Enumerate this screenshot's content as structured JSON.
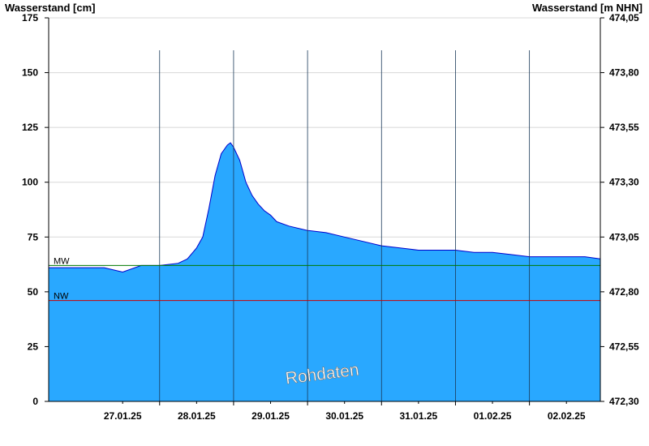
{
  "header": {
    "left_axis_title": "Wasserstand [cm]",
    "right_axis_title": "Wasserstand [m NHN]"
  },
  "watermark": "Rohdaten",
  "colors": {
    "area_fill": "#29a8ff",
    "area_line": "#0000cc",
    "mw_line": "#007a00",
    "nw_line": "#cc0000",
    "grid": "#d8d8d8",
    "day_separator": "#1a3a5a"
  },
  "chart_data": {
    "type": "area",
    "ylabel": "Wasserstand [cm]",
    "y2label": "Wasserstand [m NHN]",
    "ylim": [
      0,
      175
    ],
    "yticks": [
      0,
      25,
      50,
      75,
      100,
      125,
      150,
      175
    ],
    "y2lim": [
      472.3,
      474.05
    ],
    "y2ticks": [
      "472,30",
      "472,55",
      "472,80",
      "473,05",
      "473,30",
      "473,55",
      "473,80",
      "474,05"
    ],
    "xlim": [
      "26.01.25 12:00",
      "02.02.25 23:00"
    ],
    "xtick_labels": [
      "27.01.25",
      "28.01.25",
      "29.01.25",
      "30.01.25",
      "31.01.25",
      "01.02.25",
      "02.02.25"
    ],
    "day_boundaries": [
      "27.01.25 24:00",
      "28.01.25 24:00",
      "29.01.25 24:00",
      "30.01.25 24:00",
      "31.01.25 24:00",
      "01.02.25 24:00",
      "02.02.25 24:00"
    ],
    "grid": true,
    "reference_lines": [
      {
        "label": "MW",
        "value": 62
      },
      {
        "label": "NW",
        "value": 46
      }
    ],
    "series": [
      {
        "points": [
          [
            "26.01.25 12:00",
            61
          ],
          [
            "26.01.25 18:00",
            61
          ],
          [
            "27.01.25 00:00",
            61
          ],
          [
            "27.01.25 06:00",
            61
          ],
          [
            "27.01.25 12:00",
            59
          ],
          [
            "27.01.25 18:00",
            62
          ],
          [
            "28.01.25 00:00",
            62
          ],
          [
            "28.01.25 06:00",
            63
          ],
          [
            "28.01.25 09:00",
            65
          ],
          [
            "28.01.25 12:00",
            70
          ],
          [
            "28.01.25 14:00",
            75
          ],
          [
            "28.01.25 16:00",
            88
          ],
          [
            "28.01.25 18:00",
            103
          ],
          [
            "28.01.25 20:00",
            113
          ],
          [
            "28.01.25 22:00",
            117
          ],
          [
            "28.01.25 23:00",
            118
          ],
          [
            "29.01.25 00:00",
            116
          ],
          [
            "29.01.25 02:00",
            110
          ],
          [
            "29.01.25 04:00",
            100
          ],
          [
            "29.01.25 06:00",
            94
          ],
          [
            "29.01.25 08:00",
            90
          ],
          [
            "29.01.25 10:00",
            87
          ],
          [
            "29.01.25 12:00",
            85
          ],
          [
            "29.01.25 14:00",
            82
          ],
          [
            "29.01.25 18:00",
            80
          ],
          [
            "30.01.25 00:00",
            78
          ],
          [
            "30.01.25 06:00",
            77
          ],
          [
            "30.01.25 12:00",
            75
          ],
          [
            "30.01.25 18:00",
            73
          ],
          [
            "31.01.25 00:00",
            71
          ],
          [
            "31.01.25 06:00",
            70
          ],
          [
            "31.01.25 12:00",
            69
          ],
          [
            "31.01.25 18:00",
            69
          ],
          [
            "01.02.25 00:00",
            69
          ],
          [
            "01.02.25 06:00",
            68
          ],
          [
            "01.02.25 12:00",
            68
          ],
          [
            "01.02.25 18:00",
            67
          ],
          [
            "02.02.25 00:00",
            66
          ],
          [
            "02.02.25 06:00",
            66
          ],
          [
            "02.02.25 12:00",
            66
          ],
          [
            "02.02.25 18:00",
            66
          ],
          [
            "02.02.25 23:00",
            65
          ]
        ]
      }
    ]
  }
}
